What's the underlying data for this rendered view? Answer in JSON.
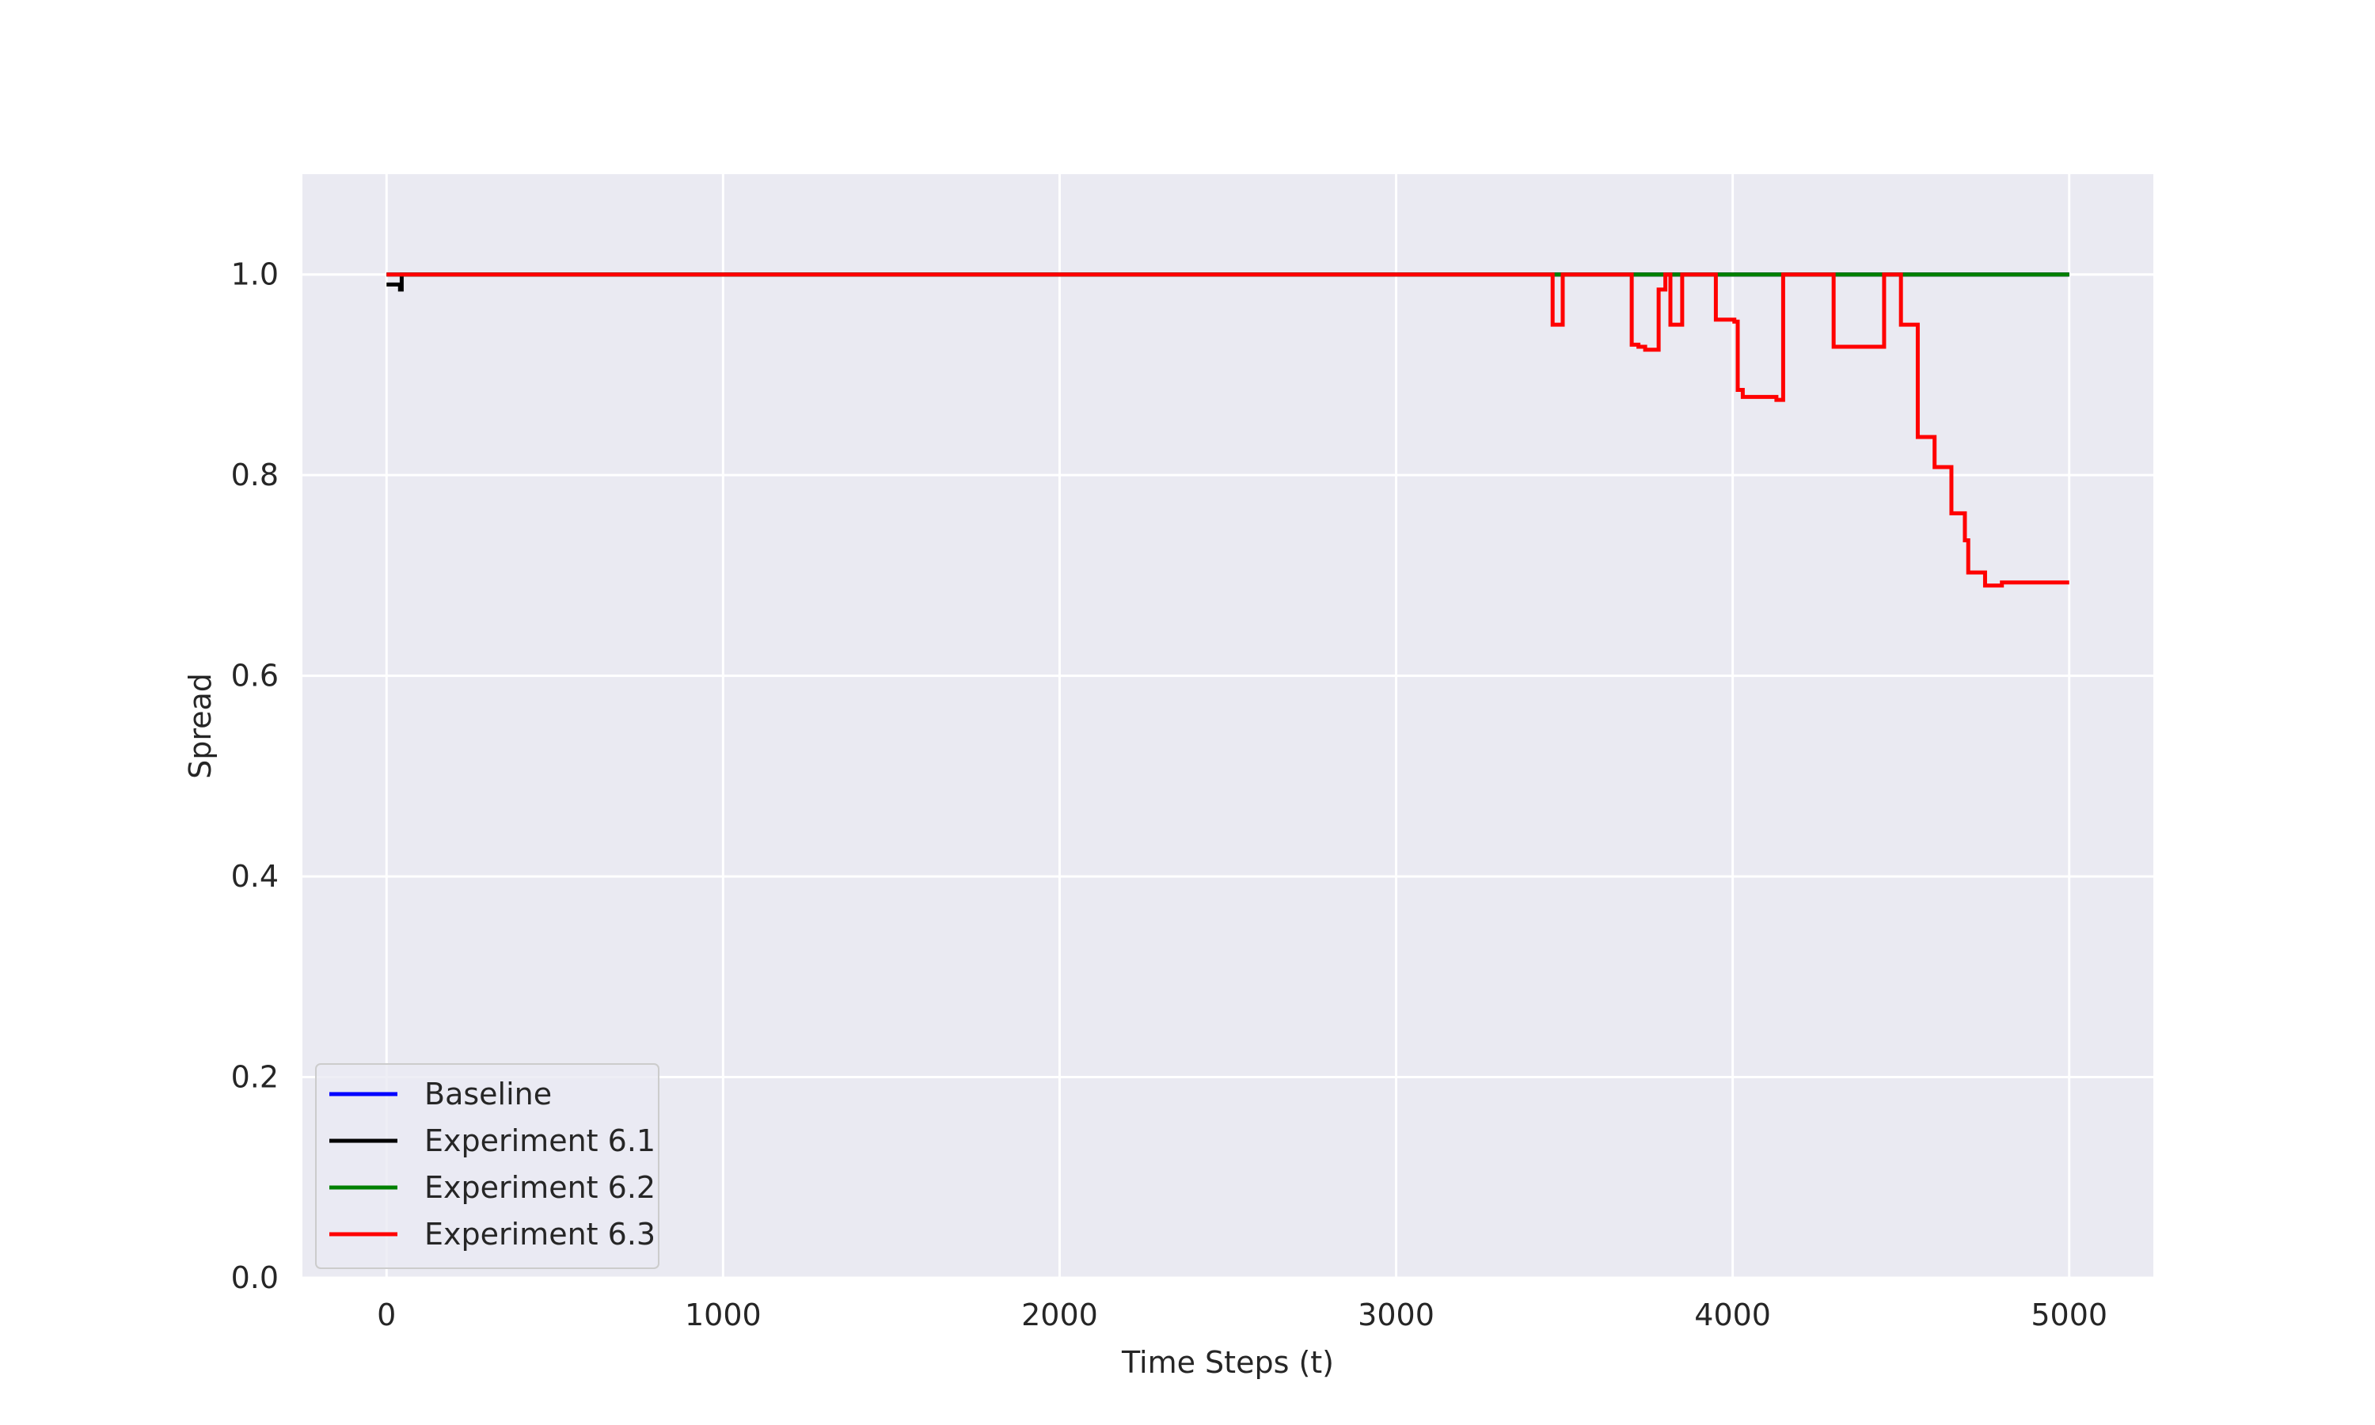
{
  "chart_data": {
    "type": "line",
    "title": "",
    "xlabel": "Time Steps (t)",
    "ylabel": "Spread",
    "xlim": [
      -250,
      5250
    ],
    "ylim": [
      0.0,
      1.1
    ],
    "xticks": [
      0,
      1000,
      2000,
      3000,
      4000,
      5000
    ],
    "yticks": [
      0.0,
      0.2,
      0.4,
      0.6,
      0.8,
      1.0
    ],
    "xtick_labels": [
      "0",
      "1000",
      "2000",
      "3000",
      "4000",
      "5000"
    ],
    "ytick_labels": [
      "0.0",
      "0.2",
      "0.4",
      "0.6",
      "0.8",
      "1.0"
    ],
    "grid": true,
    "legend_position": "lower-left",
    "background_color": "#eaeaf2",
    "series": [
      {
        "name": "Baseline",
        "color": "#0000ff",
        "step": true,
        "x": [
          0,
          5000
        ],
        "y": [
          1.0,
          1.0
        ]
      },
      {
        "name": "Experiment 6.1",
        "color": "#000000",
        "step": true,
        "x": [
          0,
          20,
          40,
          45,
          5000
        ],
        "y": [
          0.99,
          0.99,
          0.985,
          1.0,
          1.0
        ]
      },
      {
        "name": "Experiment 6.2",
        "color": "#008000",
        "step": true,
        "x": [
          0,
          5000
        ],
        "y": [
          1.0,
          1.0
        ]
      },
      {
        "name": "Experiment 6.3",
        "color": "#ff0000",
        "step": true,
        "x": [
          0,
          3465,
          3495,
          3700,
          3720,
          3740,
          3780,
          3800,
          3815,
          3850,
          3950,
          3965,
          4005,
          4015,
          4030,
          4085,
          4130,
          4150,
          4280,
          4300,
          4450,
          4500,
          4550,
          4600,
          4650,
          4680,
          4690,
          4700,
          4710,
          4750,
          4800,
          4820,
          5000
        ],
        "y": [
          1.0,
          0.95,
          1.0,
          0.93,
          0.928,
          0.925,
          0.985,
          1.0,
          0.95,
          1.0,
          0.955,
          0.955,
          0.953,
          0.885,
          0.878,
          0.878,
          0.875,
          1.0,
          1.0,
          0.928,
          1.0,
          0.95,
          0.838,
          0.808,
          0.762,
          0.762,
          0.735,
          0.703,
          0.703,
          0.69,
          0.693,
          0.693,
          0.693
        ]
      }
    ]
  }
}
